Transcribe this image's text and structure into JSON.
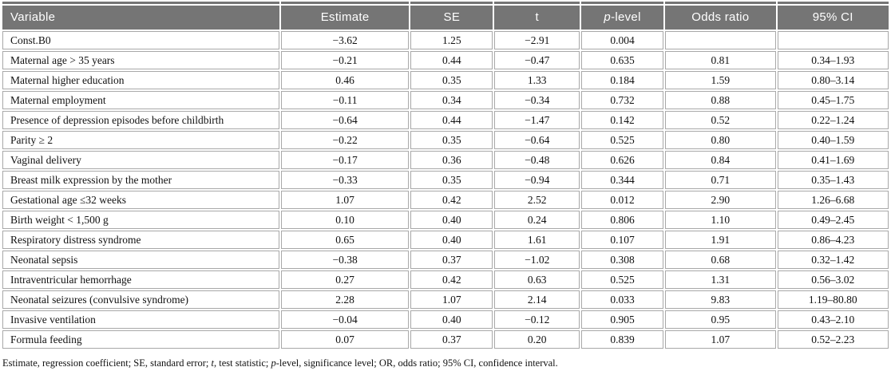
{
  "table": {
    "columns": [
      {
        "key": "variable",
        "label": "Variable",
        "width": "31.6%",
        "align": "left"
      },
      {
        "key": "estimate",
        "label": "Estimate",
        "width": "14.6%"
      },
      {
        "key": "se",
        "label": "SE",
        "width": "9.4%"
      },
      {
        "key": "t",
        "label": "t",
        "width": "9.7%"
      },
      {
        "key": "p",
        "label_italic": "p",
        "label_rest": "-level",
        "width": "9.4%"
      },
      {
        "key": "or",
        "label": "Odds ratio",
        "width": "12.6%"
      },
      {
        "key": "ci",
        "label": "95% CI",
        "width": "12.7%"
      }
    ],
    "rows": [
      {
        "variable": "Const.B0",
        "estimate": "−3.62",
        "se": "1.25",
        "t": "−2.91",
        "p": "0.004",
        "or": "",
        "ci": ""
      },
      {
        "variable": "Maternal age > 35 years",
        "estimate": "−0.21",
        "se": "0.44",
        "t": "−0.47",
        "p": "0.635",
        "or": "0.81",
        "ci": "0.34–1.93"
      },
      {
        "variable": "Maternal higher education",
        "estimate": "0.46",
        "se": "0.35",
        "t": "1.33",
        "p": "0.184",
        "or": "1.59",
        "ci": "0.80–3.14"
      },
      {
        "variable": "Maternal employment",
        "estimate": "−0.11",
        "se": "0.34",
        "t": "−0.34",
        "p": "0.732",
        "or": "0.88",
        "ci": "0.45–1.75"
      },
      {
        "variable": "Presence of depression episodes before childbirth",
        "estimate": "−0.64",
        "se": "0.44",
        "t": "−1.47",
        "p": "0.142",
        "or": "0.52",
        "ci": "0.22–1.24"
      },
      {
        "variable": "Parity ≥ 2",
        "estimate": "−0.22",
        "se": "0.35",
        "t": "−0.64",
        "p": "0.525",
        "or": "0.80",
        "ci": "0.40–1.59"
      },
      {
        "variable": "Vaginal delivery",
        "estimate": "−0.17",
        "se": "0.36",
        "t": "−0.48",
        "p": "0.626",
        "or": "0.84",
        "ci": "0.41–1.69"
      },
      {
        "variable": "Breast milk expression by the mother",
        "estimate": "−0.33",
        "se": "0.35",
        "t": "−0.94",
        "p": "0.344",
        "or": "0.71",
        "ci": "0.35–1.43"
      },
      {
        "variable": "Gestational age ≤32 weeks",
        "estimate": "1.07",
        "se": "0.42",
        "t": "2.52",
        "p": "0.012",
        "or": "2.90",
        "ci": "1.26–6.68"
      },
      {
        "variable": "Birth weight < 1,500 g",
        "estimate": "0.10",
        "se": "0.40",
        "t": "0.24",
        "p": "0.806",
        "or": "1.10",
        "ci": "0.49–2.45"
      },
      {
        "variable": "Respiratory distress syndrome",
        "estimate": "0.65",
        "se": "0.40",
        "t": "1.61",
        "p": "0.107",
        "or": "1.91",
        "ci": "0.86–4.23"
      },
      {
        "variable": "Neonatal sepsis",
        "estimate": "−0.38",
        "se": "0.37",
        "t": "−1.02",
        "p": "0.308",
        "or": "0.68",
        "ci": "0.32–1.42"
      },
      {
        "variable": "Intraventricular hemorrhage",
        "estimate": "0.27",
        "se": "0.42",
        "t": "0.63",
        "p": "0.525",
        "or": "1.31",
        "ci": "0.56–3.02"
      },
      {
        "variable": "Neonatal seizures (convulsive syndrome)",
        "estimate": "2.28",
        "se": "1.07",
        "t": "2.14",
        "p": "0.033",
        "or": "9.83",
        "ci": "1.19–80.80"
      },
      {
        "variable": "Invasive ventilation",
        "estimate": "−0.04",
        "se": "0.40",
        "t": "−0.12",
        "p": "0.905",
        "or": "0.95",
        "ci": "0.43–2.10"
      },
      {
        "variable": "Formula feeding",
        "estimate": "0.07",
        "se": "0.37",
        "t": "0.20",
        "p": "0.839",
        "or": "1.07",
        "ci": "0.52–2.23"
      }
    ],
    "footnote_segments": [
      {
        "text": "Estimate, regression coefficient; SE, standard error; ",
        "italic": false
      },
      {
        "text": "t",
        "italic": true
      },
      {
        "text": ", test statistic; ",
        "italic": false
      },
      {
        "text": "p",
        "italic": true
      },
      {
        "text": "-level, significance level; OR, odds ratio; 95% CI, confidence interval.",
        "italic": false
      }
    ],
    "colors": {
      "header_bg": "#757575",
      "header_text": "#ffffff",
      "cell_border": "#a8a8a8",
      "body_text": "#111111"
    }
  }
}
